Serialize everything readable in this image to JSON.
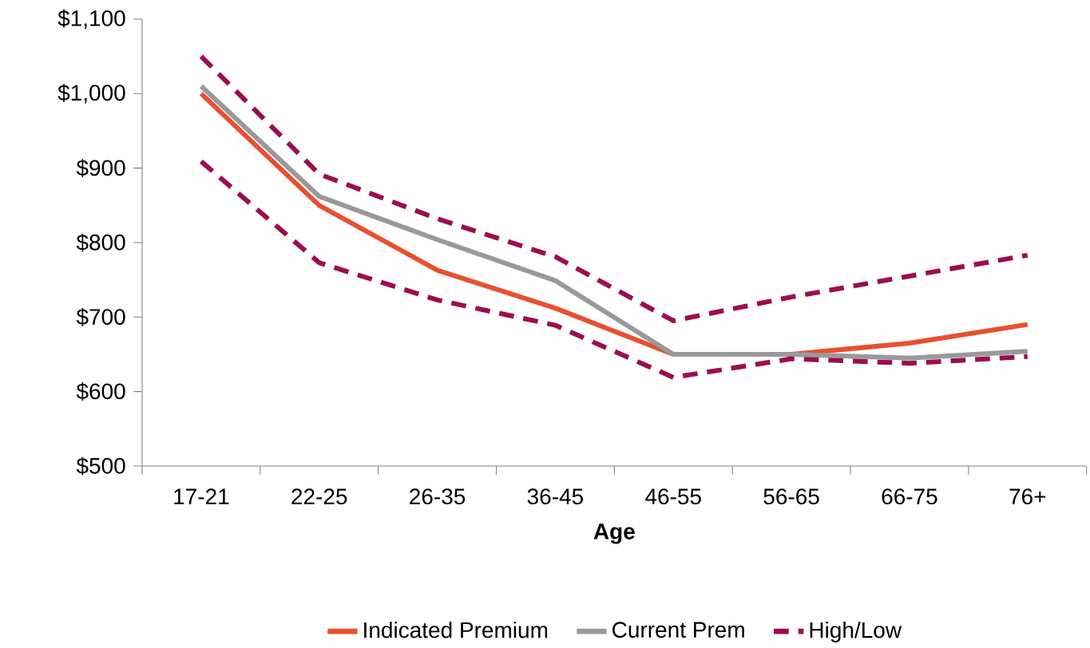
{
  "chart_data": {
    "type": "line",
    "xlabel": "Age",
    "categories": [
      "17-21",
      "22-25",
      "26-35",
      "36-45",
      "46-55",
      "56-65",
      "66-75",
      "76+"
    ],
    "series": [
      {
        "name": "Indicated Premium",
        "color": "#e8502e",
        "line_style": "solid",
        "values": [
          1000,
          850,
          763,
          712,
          650,
          650,
          665,
          690
        ]
      },
      {
        "name": "Current Prem",
        "color": "#999999",
        "line_style": "solid",
        "values": [
          1010,
          862,
          804,
          749,
          650,
          650,
          645,
          654
        ]
      },
      {
        "name": "High/Low",
        "color": "#9c0d4f",
        "line_style": "dashed",
        "values": [
          1050,
          892,
          832,
          781,
          695,
          727,
          755,
          783
        ]
      },
      {
        "color": "#9c0d4f",
        "line_style": "dashed",
        "values": [
          909,
          773,
          723,
          689,
          619,
          644,
          638,
          647
        ]
      }
    ],
    "ylim": [
      500,
      1100
    ],
    "yticks": [
      {
        "value": 500,
        "label": "$500"
      },
      {
        "value": 600,
        "label": "$600"
      },
      {
        "value": 700,
        "label": "$700"
      },
      {
        "value": 800,
        "label": "$800"
      },
      {
        "value": 900,
        "label": "$900"
      },
      {
        "value": 1000,
        "label": "$1,000"
      },
      {
        "value": 1100,
        "label": "$1,100"
      }
    ],
    "grid": false,
    "legend": "bottom",
    "marker": "none"
  }
}
